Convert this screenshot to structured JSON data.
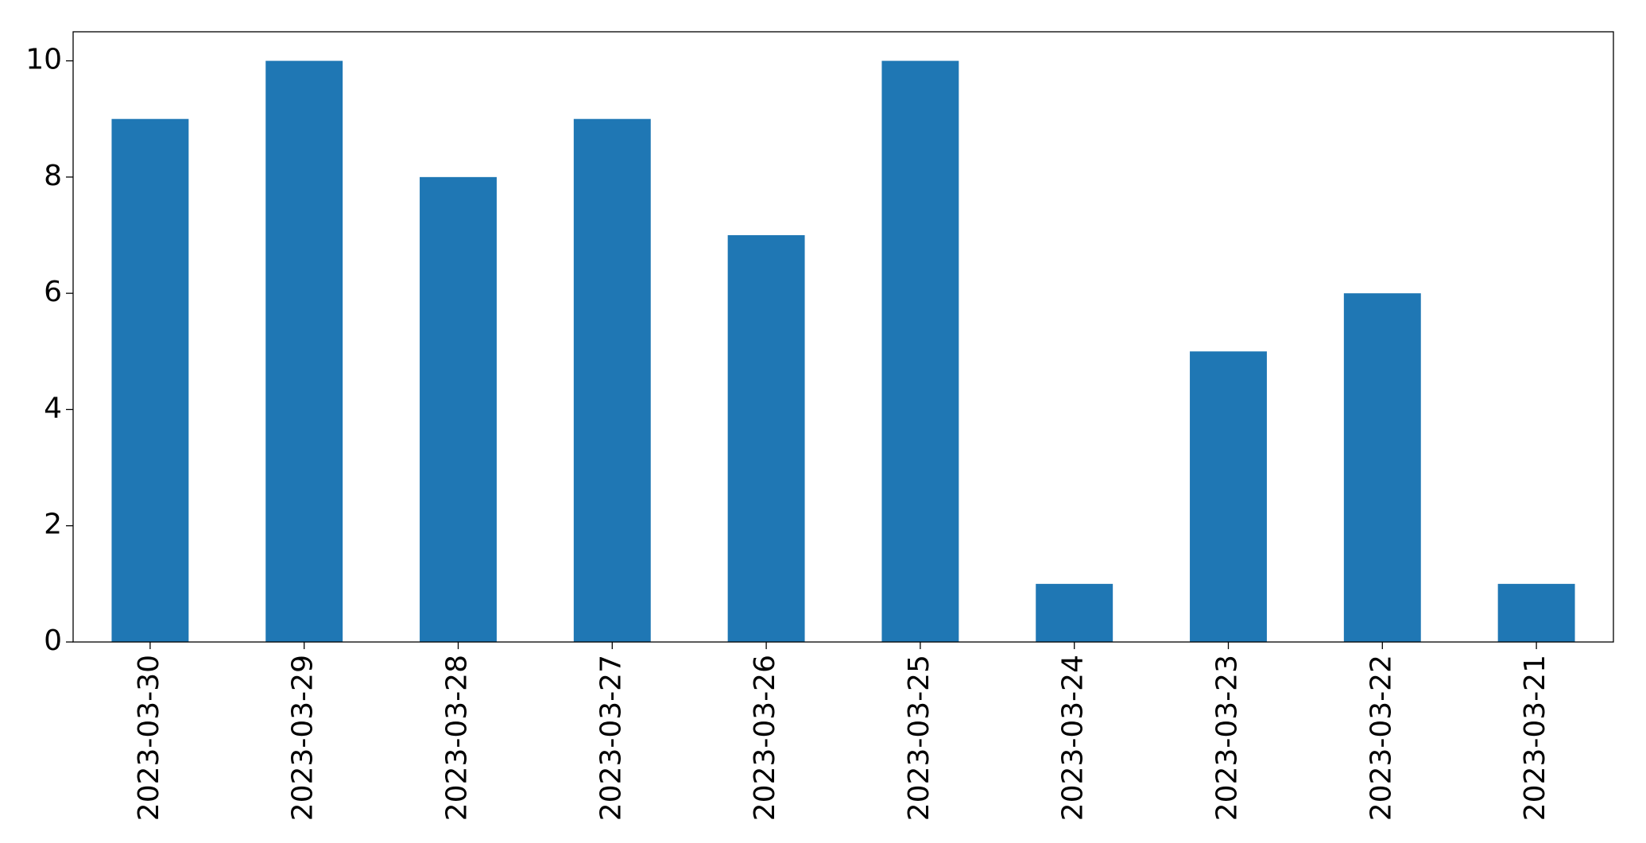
{
  "chart_data": {
    "type": "bar",
    "categories": [
      "2023-03-30",
      "2023-03-29",
      "2023-03-28",
      "2023-03-27",
      "2023-03-26",
      "2023-03-25",
      "2023-03-24",
      "2023-03-23",
      "2023-03-22",
      "2023-03-21"
    ],
    "values": [
      9,
      10,
      8,
      9,
      7,
      10,
      1,
      5,
      6,
      1
    ],
    "color": "#1f77b4",
    "ylim": [
      0,
      10.5
    ],
    "yticks": [
      0,
      2,
      4,
      6,
      8,
      10
    ],
    "grid": false
  }
}
